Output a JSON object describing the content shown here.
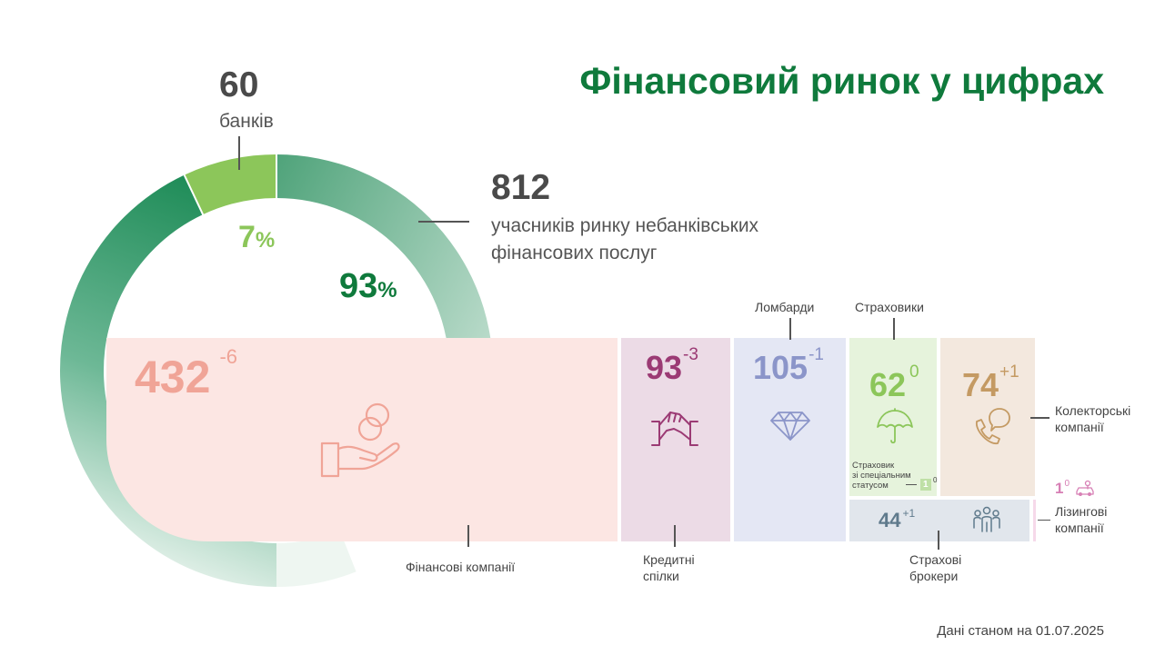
{
  "title": "Фінансовий ринок у цифрах",
  "banks": {
    "count": "60",
    "label": "банків",
    "share": "7",
    "color": "#8cc65a"
  },
  "nonbank": {
    "count": "812",
    "label_line1": "учасників ринку небанківських",
    "label_line2": "фінансових послуг",
    "share": "93",
    "color": "#0f7a3c"
  },
  "percent_sign": "%",
  "chart_data": [
    {
      "type": "pie",
      "categories": [
        "банків",
        "учасників ринку небанківських фінансових послуг"
      ],
      "values": [
        7,
        93
      ]
    },
    {
      "type": "bar",
      "categories": [
        "Фінансові компанії",
        "Кредитні спілки",
        "Ломбарди",
        "Страховики",
        "Колекторські компанії",
        "Страхові брокери",
        "Лізингові компанії",
        "Страховик зі спеціальним статусом"
      ],
      "values": [
        432,
        93,
        105,
        62,
        74,
        44,
        1,
        1
      ],
      "changes": [
        -6,
        -3,
        -1,
        0,
        1,
        1,
        0,
        0
      ]
    }
  ],
  "tiles": {
    "finco": {
      "value": "432",
      "change": "-6",
      "label": "Фінансові компанії",
      "icon": "hand-coins-icon",
      "color": "#f0a497",
      "bg": "#fce6e3"
    },
    "credit": {
      "value": "93",
      "change": "-3",
      "label_line1": "Кредитні",
      "label_line2": "спілки",
      "icon": "handshake-icon",
      "color": "#9b3a74",
      "bg": "#ecdbe6"
    },
    "pawn": {
      "value": "105",
      "change": "-1",
      "label": "Ломбарди",
      "icon": "diamond-icon",
      "color": "#8b95c9",
      "bg": "#e4e7f4"
    },
    "insurers": {
      "value": "62",
      "change": "0",
      "label": "Страховики",
      "icon": "umbrella-icon",
      "color": "#8cc65a",
      "bg": "#e6f3dc"
    },
    "special_insurer": {
      "label_line1": "Страховик",
      "label_line2": "зі спеціальним",
      "label_line3": "статусом",
      "value": "1",
      "change": "0"
    },
    "collectors": {
      "value": "74",
      "change": "+1",
      "label_line1": "Колекторські",
      "label_line2": "компанії",
      "icon": "phone-chat-icon",
      "color": "#c49a63",
      "bg": "#f3e8de"
    },
    "brokers": {
      "value": "44",
      "change": "+1",
      "label_line1": "Страхові",
      "label_line2": "брокери",
      "icon": "people-icon",
      "color": "#5f7a8c",
      "bg": "#e1e6ec"
    },
    "leasing": {
      "value": "1",
      "change": "0",
      "label_line1": "Лізингові",
      "label_line2": "компанії",
      "icon": "car-key-icon",
      "color": "#d77fb5"
    }
  },
  "footer": "Дані станом на 01.07.2025"
}
